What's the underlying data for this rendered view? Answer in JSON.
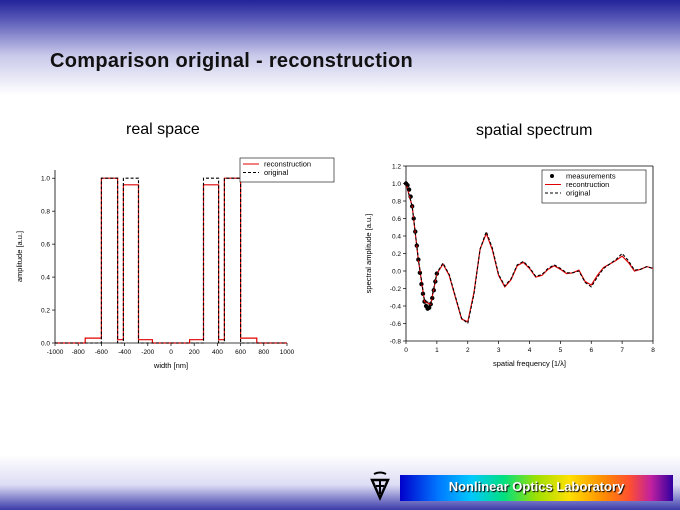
{
  "slide": {
    "title": "Comparison original - reconstruction",
    "left_label": "real space",
    "right_label": "spatial spectrum",
    "lab_name": "Nonlinear Optics Laboratory",
    "colors": {
      "red": "#e00000",
      "black": "#000000",
      "header": "#23239a"
    }
  },
  "chart_data": [
    {
      "type": "line",
      "xlabel": "width [nm]",
      "ylabel": "amplitude [a.u.]",
      "xlim": [
        -1000,
        1000
      ],
      "ylim": [
        0,
        1.05
      ],
      "xticks": [
        -1000,
        -800,
        -600,
        -400,
        -200,
        0,
        200,
        400,
        600,
        800,
        1000
      ],
      "yticks": [
        0.0,
        0.2,
        0.4,
        0.6,
        0.8,
        1.0
      ],
      "xtick_labels": [
        "-1000",
        "-800",
        "-600",
        "-400",
        "-200",
        "0",
        "200",
        "400",
        "600",
        "800",
        "1000"
      ],
      "ytick_labels": [
        "0.0",
        "0.2",
        "0.4",
        "0.6",
        "0.8",
        "1.0"
      ],
      "legend_position": "top-right",
      "legend": [
        "reconstruction",
        "original"
      ],
      "series": [
        {
          "name": "reconstruction",
          "color": "#e00000",
          "dash": "solid",
          "x": [
            -1000,
            -740,
            -740,
            -600,
            -600,
            -460,
            -460,
            -410,
            -410,
            -280,
            -280,
            -160,
            -160,
            160,
            160,
            280,
            280,
            410,
            410,
            460,
            460,
            600,
            600,
            740,
            740,
            1000
          ],
          "y": [
            0,
            0,
            0.03,
            0.03,
            1.0,
            1.0,
            0.02,
            0.02,
            0.96,
            0.96,
            0.02,
            0.02,
            0,
            0,
            0.02,
            0.02,
            0.96,
            0.96,
            0.02,
            0.02,
            1.0,
            1.0,
            0.03,
            0.03,
            0,
            0
          ]
        },
        {
          "name": "original",
          "color": "#000000",
          "dash": "dashed",
          "x": [
            -1000,
            -600,
            -600,
            -460,
            -460,
            -410,
            -410,
            -280,
            -280,
            280,
            280,
            410,
            410,
            460,
            460,
            600,
            600,
            1000
          ],
          "y": [
            0,
            0,
            1.0,
            1.0,
            0,
            0,
            1.0,
            1.0,
            0,
            0,
            1.0,
            1.0,
            0,
            0,
            1.0,
            1.0,
            0,
            0
          ]
        }
      ]
    },
    {
      "type": "line",
      "xlabel": "spatial frequency [1/λ]",
      "ylabel": "spectral amplitude [a.u.]",
      "xlim": [
        0,
        8
      ],
      "ylim": [
        -0.8,
        1.2
      ],
      "xticks": [
        0,
        1,
        2,
        3,
        4,
        5,
        6,
        7,
        8
      ],
      "yticks": [
        -0.8,
        -0.6,
        -0.4,
        -0.2,
        0.0,
        0.2,
        0.4,
        0.6,
        0.8,
        1.0,
        1.2
      ],
      "xtick_labels": [
        "0",
        "1",
        "2",
        "3",
        "4",
        "5",
        "6",
        "7",
        "8"
      ],
      "ytick_labels": [
        "-0.8",
        "-0.6",
        "-0.4",
        "-0.2",
        "0.0",
        "0.2",
        "0.4",
        "0.6",
        "0.8",
        "1.0",
        "1.2"
      ],
      "legend_position": "top-right",
      "legend": [
        "measurements",
        "recontruction",
        "original"
      ],
      "series": [
        {
          "name": "measurements",
          "color": "#000000",
          "style": "points",
          "x": [
            0.0,
            0.05,
            0.1,
            0.15,
            0.2,
            0.25,
            0.3,
            0.35,
            0.4,
            0.45,
            0.5,
            0.55,
            0.6,
            0.65,
            0.7,
            0.75,
            0.8,
            0.85,
            0.9,
            0.95,
            1.0
          ],
          "y": [
            1.0,
            0.98,
            0.93,
            0.85,
            0.74,
            0.6,
            0.45,
            0.29,
            0.13,
            -0.02,
            -0.15,
            -0.26,
            -0.35,
            -0.4,
            -0.43,
            -0.42,
            -0.38,
            -0.31,
            -0.22,
            -0.12,
            -0.03
          ]
        },
        {
          "name": "recontruction",
          "color": "#e00000",
          "dash": "solid",
          "x": [
            0.0,
            0.2,
            0.4,
            0.6,
            0.8,
            1.0,
            1.2,
            1.4,
            1.6,
            1.8,
            2.0,
            2.2,
            2.4,
            2.6,
            2.8,
            3.0,
            3.2,
            3.4,
            3.6,
            3.8,
            4.0,
            4.2,
            4.4,
            4.6,
            4.8,
            5.0,
            5.2,
            5.4,
            5.6,
            5.8,
            6.0,
            6.2,
            6.4,
            6.6,
            6.8,
            7.0,
            7.2,
            7.4,
            7.6,
            7.8,
            8.0
          ],
          "y": [
            1.0,
            0.74,
            0.13,
            -0.35,
            -0.38,
            -0.03,
            0.08,
            -0.05,
            -0.3,
            -0.55,
            -0.58,
            -0.25,
            0.25,
            0.43,
            0.24,
            -0.05,
            -0.18,
            -0.1,
            0.06,
            0.1,
            0.03,
            -0.07,
            -0.05,
            0.02,
            0.06,
            0.02,
            -0.03,
            -0.02,
            0.01,
            -0.12,
            -0.16,
            -0.05,
            0.04,
            0.08,
            0.12,
            0.17,
            0.1,
            0.0,
            0.02,
            0.05,
            0.03
          ]
        },
        {
          "name": "original",
          "color": "#000000",
          "dash": "dashed",
          "x": [
            0.0,
            0.2,
            0.4,
            0.6,
            0.8,
            1.0,
            1.2,
            1.4,
            1.6,
            1.8,
            2.0,
            2.2,
            2.4,
            2.6,
            2.8,
            3.0,
            3.2,
            3.4,
            3.6,
            3.8,
            4.0,
            4.2,
            4.4,
            4.6,
            4.8,
            5.0,
            5.2,
            5.4,
            5.6,
            5.8,
            6.0,
            6.2,
            6.4,
            6.6,
            6.8,
            7.0,
            7.2,
            7.4,
            7.6,
            7.8,
            8.0
          ],
          "y": [
            1.0,
            0.74,
            0.14,
            -0.34,
            -0.37,
            -0.02,
            0.09,
            -0.04,
            -0.29,
            -0.54,
            -0.6,
            -0.27,
            0.25,
            0.45,
            0.26,
            -0.04,
            -0.17,
            -0.09,
            0.07,
            0.11,
            0.04,
            -0.06,
            -0.04,
            0.03,
            0.07,
            0.03,
            -0.02,
            -0.02,
            0.0,
            -0.13,
            -0.18,
            -0.07,
            0.03,
            0.08,
            0.13,
            0.2,
            0.12,
            0.01,
            0.02,
            0.05,
            0.03
          ]
        }
      ]
    }
  ]
}
